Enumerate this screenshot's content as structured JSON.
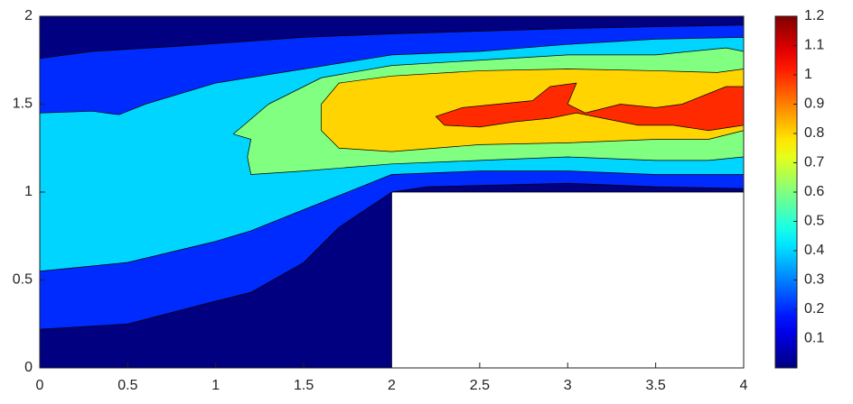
{
  "chart_data": {
    "type": "contour",
    "colormap": "jet",
    "xlim": [
      0,
      4
    ],
    "ylim": [
      0,
      2
    ],
    "xticks": [
      0,
      0.5,
      1,
      1.5,
      2,
      2.5,
      3,
      3.5,
      4
    ],
    "yticks": [
      0,
      0.5,
      1,
      1.5,
      2
    ],
    "clim": [
      0,
      1.2
    ],
    "cticks": [
      0.1,
      0.2,
      0.3,
      0.4,
      0.5,
      0.6,
      0.7,
      0.8,
      0.9,
      1,
      1.1,
      1.2
    ],
    "regions": [
      {
        "level": 0,
        "x": [
          0,
          2,
          2,
          4,
          4,
          0
        ],
        "y": [
          0,
          0,
          1,
          1,
          2,
          2
        ]
      },
      {
        "level": 0.2,
        "x": [
          0,
          0.3,
          0.8,
          1.5,
          2,
          3,
          3.5,
          4,
          4,
          3.5,
          3,
          2.2,
          2,
          1.7,
          1.5,
          1.2,
          1,
          0.5,
          0
        ],
        "y": [
          1.76,
          1.8,
          1.83,
          1.88,
          1.9,
          1.93,
          1.94,
          1.95,
          1.02,
          1.03,
          1.05,
          1.03,
          1.0,
          0.8,
          0.6,
          0.43,
          0.38,
          0.25,
          0.22
        ]
      },
      {
        "level": 0.4,
        "x": [
          0,
          0.3,
          0.45,
          0.6,
          1,
          1.5,
          2,
          2.5,
          3,
          3.5,
          4,
          4,
          3.5,
          3,
          2.5,
          2,
          1.8,
          1.5,
          1.2,
          1,
          0.5,
          0
        ],
        "y": [
          1.45,
          1.46,
          1.44,
          1.5,
          1.62,
          1.7,
          1.78,
          1.8,
          1.84,
          1.87,
          1.88,
          1.1,
          1.1,
          1.12,
          1.12,
          1.1,
          1.02,
          0.9,
          0.78,
          0.72,
          0.6,
          0.55
        ]
      },
      {
        "level": 0.6,
        "x": [
          1.1,
          1.3,
          1.6,
          2,
          2.5,
          3,
          3.5,
          3.9,
          4,
          4,
          3.8,
          3.5,
          3,
          2.5,
          2,
          1.5,
          1.2,
          1.18,
          1.2
        ],
        "y": [
          1.33,
          1.5,
          1.65,
          1.72,
          1.75,
          1.78,
          1.78,
          1.82,
          1.8,
          1.2,
          1.18,
          1.18,
          1.2,
          1.18,
          1.16,
          1.12,
          1.1,
          1.2,
          1.3
        ]
      },
      {
        "level": 0.8,
        "x": [
          1.6,
          1.7,
          2,
          2.5,
          3,
          3.5,
          3.85,
          4,
          4,
          3.8,
          3.5,
          3,
          2.5,
          2,
          1.7,
          1.6
        ],
        "y": [
          1.5,
          1.62,
          1.66,
          1.69,
          1.7,
          1.69,
          1.68,
          1.7,
          1.35,
          1.3,
          1.3,
          1.28,
          1.27,
          1.23,
          1.25,
          1.35
        ]
      },
      {
        "level": 1,
        "x": [
          2.25,
          2.4,
          2.6,
          2.8,
          2.9,
          3.05,
          3.0,
          3.1,
          3.3,
          3.5,
          3.65,
          3.9,
          4,
          4,
          3.8,
          3.6,
          3.4,
          3.2,
          3.05,
          2.9,
          2.7,
          2.5,
          2.3
        ],
        "y": [
          1.43,
          1.48,
          1.5,
          1.52,
          1.6,
          1.62,
          1.5,
          1.45,
          1.5,
          1.48,
          1.5,
          1.6,
          1.6,
          1.38,
          1.35,
          1.38,
          1.38,
          1.42,
          1.45,
          1.42,
          1.4,
          1.37,
          1.38
        ]
      }
    ]
  }
}
